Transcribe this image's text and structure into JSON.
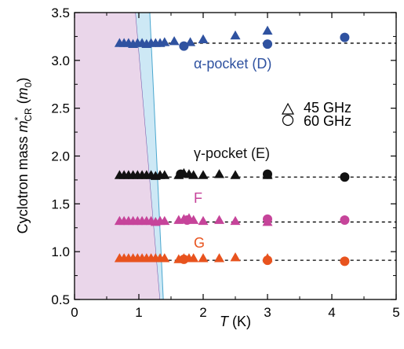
{
  "chart_data": {
    "type": "scatter",
    "xlabel_italic": "T",
    "xlabel_unit": " (K)",
    "ylabel": "Cyclotron mass m*CR (m0)",
    "xlim": [
      0,
      5
    ],
    "ylim": [
      0.5,
      3.5
    ],
    "x_ticks": [
      "0",
      "1",
      "2",
      "3",
      "4",
      "5"
    ],
    "y_ticks": [
      "0.5",
      "1.0",
      "1.5",
      "2.0",
      "2.5",
      "3.0",
      "3.5"
    ],
    "legend": [
      {
        "label": "45 GHz",
        "marker": "triangle"
      },
      {
        "label": "60 GHz",
        "marker": "circle"
      }
    ],
    "annotations": {
      "alpha": "α-pocket (D)",
      "gamma": "γ-pocket (E)",
      "F": "F",
      "G": "G"
    },
    "reference_lines": [
      3.18,
      1.78,
      1.31,
      0.91
    ],
    "shaded_regions": [
      {
        "color": "#ead6ea",
        "bottom_x": [
          0,
          1.33
        ],
        "top_x": [
          0,
          0.95
        ]
      },
      {
        "color": "#cde8f5",
        "bottom_x": [
          1.33,
          1.38
        ],
        "top_x": [
          0.95,
          1.17
        ]
      }
    ],
    "series": [
      {
        "pocket": "alpha",
        "freq": "45 GHz",
        "marker": "triangle",
        "color": "#2f52a0",
        "x": [
          0.7,
          0.77,
          0.84,
          0.91,
          0.98,
          1.05,
          1.12,
          1.19,
          1.26,
          1.33,
          1.4,
          1.55,
          1.8,
          2.0,
          2.5,
          3.0
        ],
        "y": [
          3.18,
          3.18,
          3.18,
          3.17,
          3.18,
          3.18,
          3.17,
          3.18,
          3.18,
          3.18,
          3.19,
          3.2,
          3.19,
          3.22,
          3.26,
          3.31
        ]
      },
      {
        "pocket": "alpha",
        "freq": "60 GHz",
        "marker": "circle",
        "color": "#2f52a0",
        "x": [
          1.7,
          3.0,
          4.2
        ],
        "y": [
          3.15,
          3.17,
          3.24
        ]
      },
      {
        "pocket": "gamma",
        "freq": "45 GHz",
        "marker": "triangle",
        "color": "#111111",
        "x": [
          0.7,
          0.77,
          0.84,
          0.91,
          0.98,
          1.05,
          1.12,
          1.19,
          1.26,
          1.33,
          1.4,
          1.62,
          1.7,
          1.78,
          1.85,
          2.0,
          2.25,
          2.5,
          3.0
        ],
        "y": [
          1.8,
          1.8,
          1.8,
          1.8,
          1.8,
          1.8,
          1.8,
          1.8,
          1.79,
          1.8,
          1.8,
          1.8,
          1.82,
          1.81,
          1.8,
          1.8,
          1.81,
          1.8,
          1.8
        ]
      },
      {
        "pocket": "gamma",
        "freq": "60 GHz",
        "marker": "circle",
        "color": "#111111",
        "x": [
          1.65,
          3.0,
          4.2
        ],
        "y": [
          1.81,
          1.81,
          1.78
        ]
      },
      {
        "pocket": "F",
        "freq": "45 GHz",
        "marker": "triangle",
        "color": "#c6449a",
        "x": [
          0.7,
          0.77,
          0.84,
          0.91,
          0.98,
          1.05,
          1.12,
          1.19,
          1.26,
          1.33,
          1.4,
          1.62,
          1.7,
          1.78,
          1.85,
          2.0,
          2.25,
          2.5,
          3.0
        ],
        "y": [
          1.32,
          1.32,
          1.32,
          1.32,
          1.32,
          1.32,
          1.32,
          1.32,
          1.31,
          1.32,
          1.32,
          1.33,
          1.34,
          1.35,
          1.33,
          1.32,
          1.33,
          1.32,
          1.31
        ]
      },
      {
        "pocket": "F",
        "freq": "60 GHz",
        "marker": "circle",
        "color": "#c6449a",
        "x": [
          1.75,
          3.0,
          4.2
        ],
        "y": [
          1.33,
          1.34,
          1.33
        ]
      },
      {
        "pocket": "G",
        "freq": "45 GHz",
        "marker": "triangle",
        "color": "#e8531e",
        "x": [
          0.7,
          0.77,
          0.84,
          0.91,
          0.98,
          1.05,
          1.12,
          1.19,
          1.26,
          1.33,
          1.4,
          1.62,
          1.7,
          1.78,
          1.85,
          2.0,
          2.25,
          2.5,
          3.0
        ],
        "y": [
          0.93,
          0.93,
          0.93,
          0.93,
          0.93,
          0.93,
          0.93,
          0.93,
          0.93,
          0.93,
          0.93,
          0.92,
          0.93,
          0.93,
          0.93,
          0.93,
          0.93,
          0.94,
          0.93
        ]
      },
      {
        "pocket": "G",
        "freq": "60 GHz",
        "marker": "circle",
        "color": "#e8531e",
        "x": [
          1.7,
          3.0,
          4.2
        ],
        "y": [
          0.92,
          0.91,
          0.9
        ]
      }
    ]
  }
}
